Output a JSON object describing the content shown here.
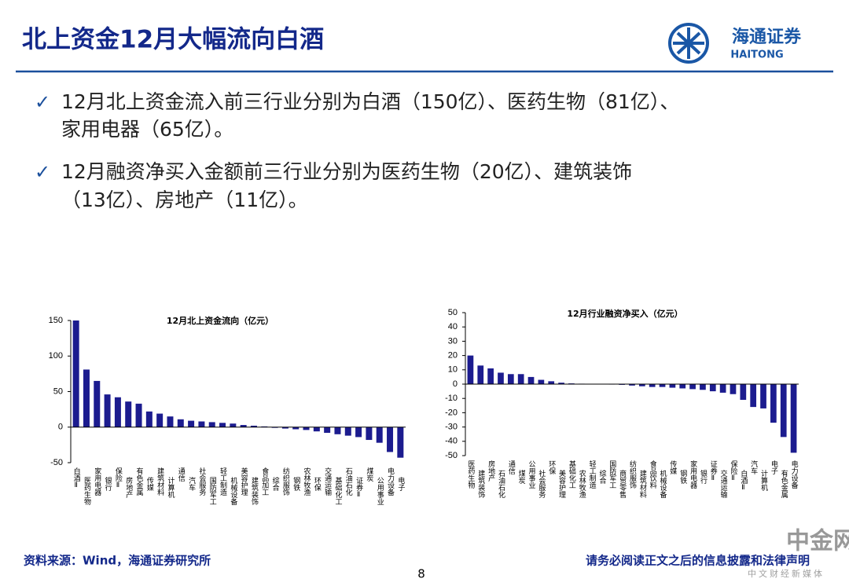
{
  "header": {
    "title": "北上资金12月大幅流向白酒",
    "logo_name": "海通证券",
    "logo_english": "HAITONG"
  },
  "bullets": [
    [
      "12月北上资金流入前三行业分别为白酒（150亿）、医药生物（81亿）、",
      "家用电器（65亿）。"
    ],
    [
      "12月融资净买入金额前三行业分别为医药生物（20亿）、建筑装饰",
      "（13亿）、房地产（11亿）。"
    ]
  ],
  "footer": {
    "source": "资料来源：Wind，海通证券研究所",
    "page": "8",
    "disclaimer": "请务必阅读正文之后的信息披露和法律声明",
    "watermark": "中金网",
    "watermark_sub": "中文财经新媒体"
  },
  "chart_data": [
    {
      "type": "bar",
      "title": "12月北上资金流向（亿元）",
      "color": "#1c1c8f",
      "categories": [
        "白酒Ⅱ",
        "医药生物",
        "家用电器",
        "银行",
        "保险Ⅱ",
        "房地产",
        "有色金属",
        "传媒",
        "建筑材料",
        "计算机",
        "通信",
        "汽车",
        "社会服务",
        "国防军工",
        "轻工制造",
        "机械设备",
        "美容护理",
        "建筑装饰",
        "食品加工",
        "综合",
        "纺织服饰",
        "钢铁",
        "农林牧渔",
        "环保",
        "交通运输",
        "基础化工",
        "石油石化",
        "证券Ⅱ",
        "煤炭",
        "公用事业",
        "电力设备",
        "电子"
      ],
      "values": [
        150,
        81,
        65,
        46,
        42,
        36,
        33,
        22,
        19,
        15,
        11,
        9,
        8,
        7,
        6,
        5,
        3,
        2,
        1,
        -1,
        -2,
        -3,
        -4,
        -6,
        -8,
        -10,
        -12,
        -14,
        -18,
        -22,
        -35,
        -43
      ],
      "ylim": [
        -50,
        150
      ],
      "yticks": [
        -50,
        0,
        50,
        100,
        150
      ]
    },
    {
      "type": "bar",
      "title": "12月行业融资净买入（亿元）",
      "color": "#1c1c8f",
      "categories": [
        "医药生物",
        "建筑装饰",
        "房地产",
        "石油石化",
        "通信",
        "煤炭",
        "公用事业",
        "社会服务",
        "环保",
        "美容护理",
        "基础化工",
        "农林牧渔",
        "轻工制造",
        "综合",
        "国防军工",
        "商贸零售",
        "纺织服饰",
        "建筑材料",
        "食品饮料",
        "机械设备",
        "传媒",
        "钢铁",
        "家用电器",
        "银行",
        "证券Ⅱ",
        "交通运输",
        "保险Ⅱ",
        "白酒Ⅱ",
        "汽车",
        "计算机",
        "电子",
        "有色金属",
        "电力设备"
      ],
      "values": [
        20,
        13,
        11,
        8,
        7,
        7,
        5,
        3,
        2,
        1,
        0.5,
        0.3,
        0.2,
        0,
        -0.3,
        -0.5,
        -1,
        -1.5,
        -2,
        -2,
        -2.5,
        -3,
        -3.5,
        -4,
        -5,
        -6,
        -7,
        -11,
        -16,
        -17,
        -27,
        -37,
        -48
      ],
      "ylim": [
        -50,
        50
      ],
      "yticks": [
        -50,
        -40,
        -30,
        -20,
        -10,
        0,
        10,
        20,
        30,
        40,
        50
      ]
    }
  ]
}
